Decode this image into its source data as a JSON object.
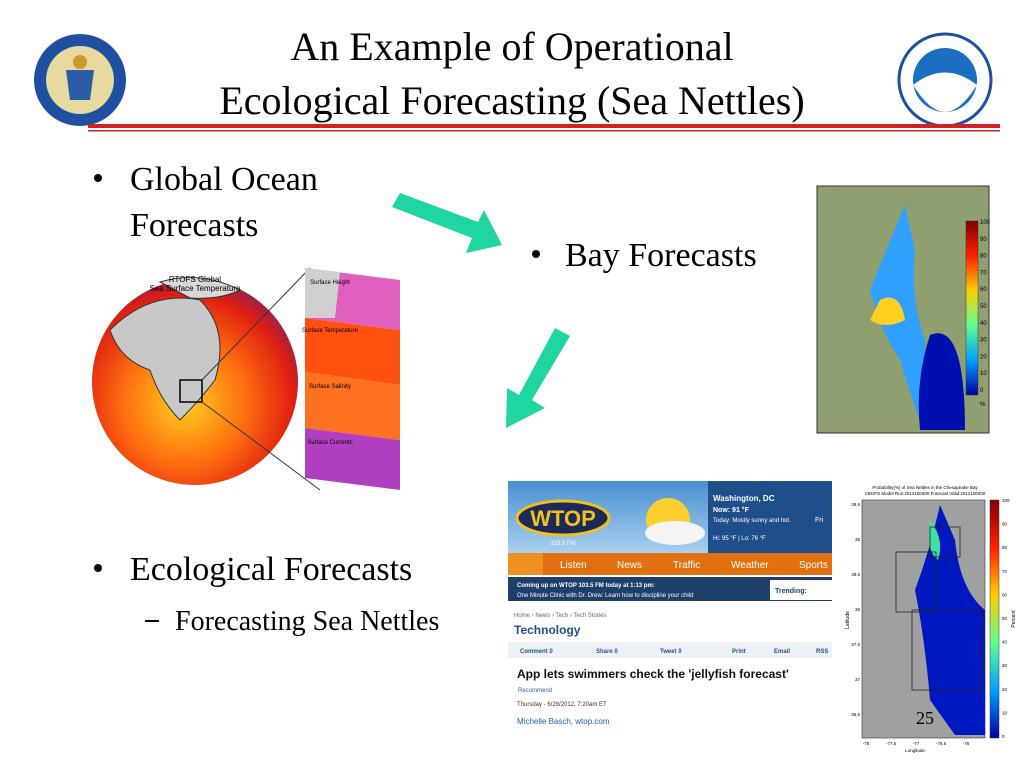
{
  "header": {
    "title_lines": [
      "An Example of Operational",
      "Ecological Forecasting (Sea Nettles)"
    ]
  },
  "bullets": {
    "global": [
      "Global Ocean",
      "Forecasts"
    ],
    "bay": "Bay Forecasts",
    "eco": "Ecological Forecasts",
    "sub": "Forecasting Sea Nettles"
  },
  "globe": {
    "title": [
      "RTOFS Global",
      "Sea Surface Temperature"
    ],
    "panels": [
      "Surface Height",
      "Surface Temperature",
      "Surface Salinity",
      "Surface Currents"
    ]
  },
  "bay_map": {
    "colorbar_ticks": [
      100,
      90,
      80,
      70,
      60,
      50,
      40,
      30,
      20,
      10,
      0
    ],
    "unit": "%"
  },
  "wtop": {
    "logo": "WTOP",
    "freq": "103.5 FM",
    "location": "Washington, DC",
    "now": "Now: 91 °F",
    "today": "Today: Mostly sunny and hot.",
    "hilo": "Hi: 95 °F | Lo: 76 °F",
    "day": "Fri",
    "nav": [
      "Listen",
      "News",
      "Traffic",
      "Weather",
      "Sports"
    ],
    "coming": "Coming up on WTOP 103.5 FM today at 1:13 pm:",
    "clinic": "One Minute Clinic with Dr. Drew: Learn how to discipline your child",
    "trending": "Trending:",
    "crumbs": "Home › News › Tech › Tech Stories",
    "section": "Technology",
    "share": [
      "Comment 0",
      "Share 0",
      "Tweet 0",
      "Print",
      "Email",
      "RSS"
    ],
    "headline": "App lets swimmers check the 'jellyfish forecast'",
    "recommend": "Recommend",
    "date": "Thursday - 6/28/2012, 7:20am ET",
    "byline": "Michelle Basch, wtop.com"
  },
  "prob_map": {
    "title": "Probability(%) of Sea Nettles in the Chesapeake Bay",
    "subtitle": "CBOFS Model Run:2012100400 Forecast Valid:2012100400",
    "ylabel": "Latitude",
    "xlabel": "Longitude",
    "cbar_label": "Percent",
    "yticks": [
      39.5,
      39,
      38.5,
      38,
      37.5,
      37,
      36.5
    ],
    "xticks": [
      -78,
      -77.5,
      -77,
      -76.5,
      -76
    ],
    "cbar_ticks": [
      100,
      90,
      80,
      70,
      60,
      50,
      40,
      30,
      20,
      10,
      0
    ]
  },
  "page_number": "25"
}
